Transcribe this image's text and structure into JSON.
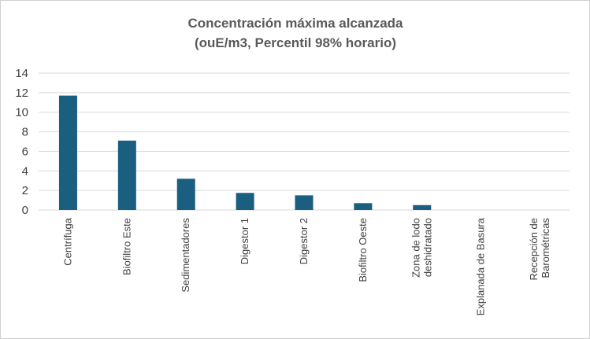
{
  "chart_data": {
    "type": "bar",
    "title_lines": [
      "Concentración máxima alcanzada",
      "(ouE/m3, Percentil 98% horario)"
    ],
    "categories": [
      [
        "Centrífuga"
      ],
      [
        "Biofiltro Este"
      ],
      [
        "Sedimentadores"
      ],
      [
        "Digestor 1"
      ],
      [
        "Digestor 2"
      ],
      [
        "Biofiltro Oeste"
      ],
      [
        "Zona de lodo",
        "deshidratado"
      ],
      [
        "Explanada de Basura"
      ],
      [
        "Recepción de",
        "Barométricas"
      ]
    ],
    "values": [
      11.7,
      7.1,
      3.2,
      1.75,
      1.5,
      0.7,
      0.5,
      0,
      0
    ],
    "ylim": [
      0,
      14
    ],
    "yticks": [
      0,
      2,
      4,
      6,
      8,
      10,
      12,
      14
    ],
    "grid": true,
    "legend": "none",
    "bar_color": "#1a5e80",
    "grid_color": "#d9d9d9"
  }
}
